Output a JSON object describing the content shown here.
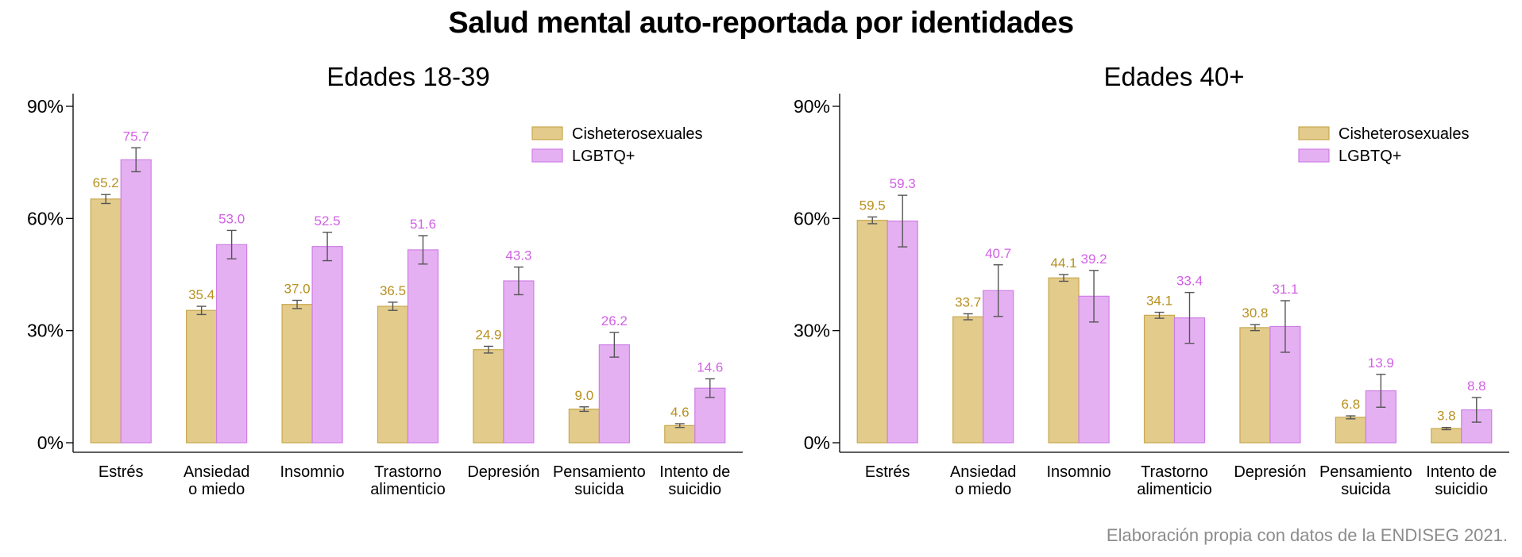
{
  "title": "Salud mental auto-reportada por identidades",
  "source": "Elaboración propia con datos de la ENDISEG 2021.",
  "colors": {
    "cis_fill": "#e2cb8b",
    "cis_stroke": "#c9a84e",
    "cis_label": "#b8901f",
    "lgbt_fill": "#e5b0f2",
    "lgbt_stroke": "#cf7ee6",
    "lgbt_label": "#d261e6",
    "error_bar": "#555555"
  },
  "chart_data": [
    {
      "type": "bar",
      "title": "Edades 18-39",
      "categories": [
        [
          "Estrés"
        ],
        [
          "Ansiedad",
          "o miedo"
        ],
        [
          "Insomnio"
        ],
        [
          "Trastorno",
          "alimenticio"
        ],
        [
          "Depresión"
        ],
        [
          "Pensamiento",
          "suicida"
        ],
        [
          "Intento de",
          "suicidio"
        ]
      ],
      "yticks": [
        "0%",
        "30%",
        "60%",
        "90%"
      ],
      "ylim": [
        0,
        90
      ],
      "grid": false,
      "legend_position": "top-right",
      "series": [
        {
          "name": "Cisheterosexuales",
          "values": [
            65.2,
            35.4,
            37.0,
            36.5,
            24.9,
            9.0,
            4.6
          ],
          "labels": [
            "65.2",
            "35.4",
            "37.0",
            "36.5",
            "24.9",
            "9.0",
            "4.6"
          ],
          "ci": [
            [
              64.0,
              66.4
            ],
            [
              34.3,
              36.5
            ],
            [
              35.9,
              38.1
            ],
            [
              35.4,
              37.6
            ],
            [
              24.0,
              25.8
            ],
            [
              8.4,
              9.6
            ],
            [
              4.1,
              5.1
            ]
          ]
        },
        {
          "name": "LGBTQ+",
          "values": [
            75.7,
            53.0,
            52.5,
            51.6,
            43.3,
            26.2,
            14.6
          ],
          "labels": [
            "75.7",
            "53.0",
            "52.5",
            "51.6",
            "43.3",
            "26.2",
            "14.6"
          ],
          "ci": [
            [
              72.5,
              78.9
            ],
            [
              49.2,
              56.8
            ],
            [
              48.7,
              56.3
            ],
            [
              47.8,
              55.4
            ],
            [
              39.6,
              47.0
            ],
            [
              22.9,
              29.5
            ],
            [
              12.1,
              17.1
            ]
          ]
        }
      ]
    },
    {
      "type": "bar",
      "title": "Edades 40+",
      "categories": [
        [
          "Estrés"
        ],
        [
          "Ansiedad",
          "o miedo"
        ],
        [
          "Insomnio"
        ],
        [
          "Trastorno",
          "alimenticio"
        ],
        [
          "Depresión"
        ],
        [
          "Pensamiento",
          "suicida"
        ],
        [
          "Intento de",
          "suicidio"
        ]
      ],
      "yticks": [
        "0%",
        "30%",
        "60%",
        "90%"
      ],
      "ylim": [
        0,
        90
      ],
      "grid": false,
      "legend_position": "top-right",
      "series": [
        {
          "name": "Cisheterosexuales",
          "values": [
            59.5,
            33.7,
            44.1,
            34.1,
            30.8,
            6.8,
            3.8
          ],
          "labels": [
            "59.5",
            "33.7",
            "44.1",
            "34.1",
            "30.8",
            "6.8",
            "3.8"
          ],
          "ci": [
            [
              58.6,
              60.4
            ],
            [
              32.9,
              34.5
            ],
            [
              43.2,
              45.0
            ],
            [
              33.3,
              34.9
            ],
            [
              30.0,
              31.6
            ],
            [
              6.4,
              7.2
            ],
            [
              3.5,
              4.1
            ]
          ]
        },
        {
          "name": "LGBTQ+",
          "values": [
            59.3,
            40.7,
            39.2,
            33.4,
            31.1,
            13.9,
            8.8
          ],
          "labels": [
            "59.3",
            "40.7",
            "39.2",
            "33.4",
            "31.1",
            "13.9",
            "8.8"
          ],
          "ci": [
            [
              52.4,
              66.2
            ],
            [
              33.8,
              47.6
            ],
            [
              32.3,
              46.1
            ],
            [
              26.6,
              40.2
            ],
            [
              24.2,
              38.0
            ],
            [
              9.5,
              18.3
            ],
            [
              5.5,
              12.1
            ]
          ]
        }
      ]
    }
  ]
}
